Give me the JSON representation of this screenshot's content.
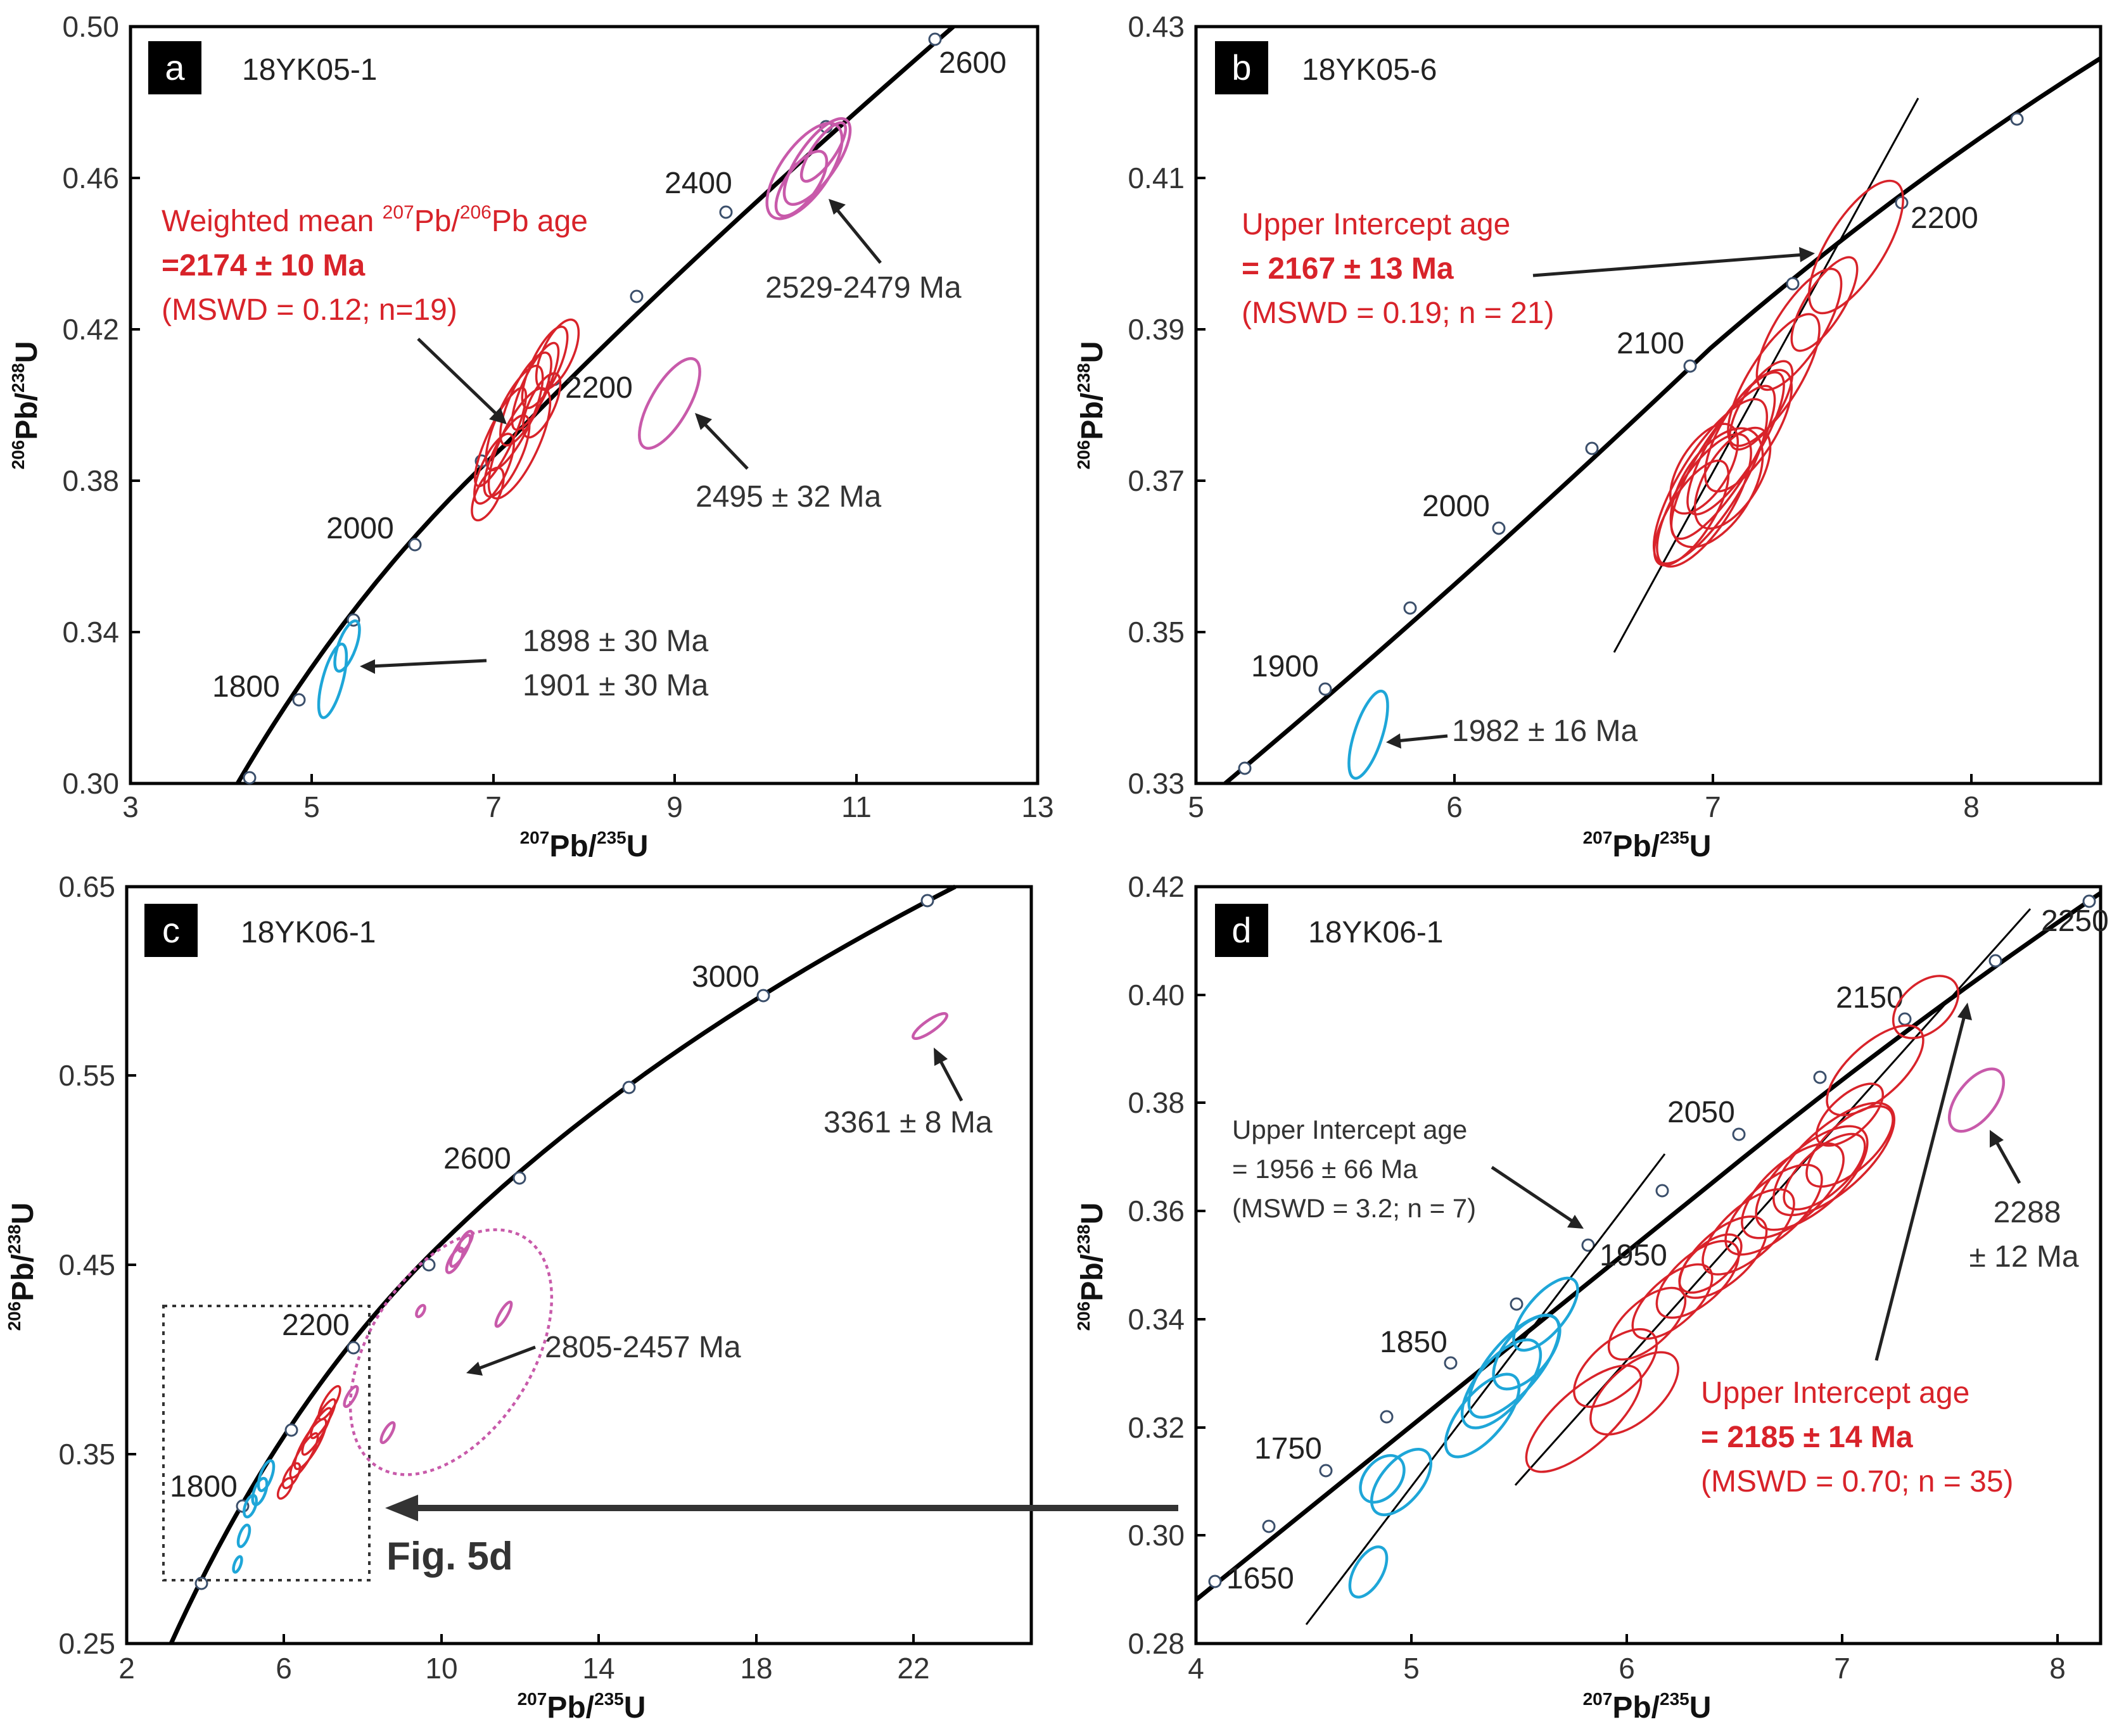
{
  "chart_data": [
    {
      "type": "scatter",
      "panel": "a",
      "sample": "18YK05-1",
      "xlabel": "207Pb/235U",
      "ylabel": "206Pb/238U",
      "xlim": [
        3,
        13
      ],
      "ylim": [
        0.3,
        0.5
      ],
      "xticks": [
        "3",
        "5",
        "7",
        "9",
        "11",
        "13"
      ],
      "yticks": [
        "0.30",
        "0.34",
        "0.38",
        "0.42",
        "0.46",
        "0.50"
      ],
      "concordia_labels": [
        "1800",
        "2000",
        "2200",
        "2400",
        "2600"
      ],
      "annotations": {
        "red_line1": "Weighted mean ",
        "red_line1_sup": "207",
        "red_line1_mid": "Pb/",
        "red_line1_sup2": "206",
        "red_line1_end": "Pb age",
        "red_line2": "=2174 ± 10  Ma",
        "red_line3": "(MSWD = 0.12; n=19)",
        "mag_upper": "2529-2479 Ma",
        "mag_lower": "2495 ± 32 Ma",
        "cyan_line1": "1898 ± 30 Ma",
        "cyan_line2": "1901 ± 30 Ma"
      },
      "series": [
        {
          "name": "red",
          "values": [
            [
              7.2,
              0.385
            ],
            [
              7.4,
              0.392
            ],
            [
              7.5,
              0.398
            ],
            [
              7.6,
              0.404
            ],
            [
              7.3,
              0.388
            ],
            [
              7.45,
              0.395
            ],
            [
              7.7,
              0.41
            ]
          ]
        },
        {
          "name": "magenta",
          "values": [
            [
              10.6,
              0.463
            ],
            [
              10.7,
              0.466
            ],
            [
              9.2,
              0.403
            ]
          ]
        },
        {
          "name": "cyan",
          "values": [
            [
              5.2,
              0.328
            ],
            [
              5.4,
              0.336
            ]
          ]
        }
      ]
    },
    {
      "type": "scatter",
      "panel": "b",
      "sample": "18YK05-6",
      "xlabel": "207Pb/235U",
      "ylabel": "206Pb/238U",
      "xlim": [
        5,
        8.5
      ],
      "ylim": [
        0.33,
        0.43
      ],
      "xticks": [
        "5",
        "6",
        "7",
        "8"
      ],
      "yticks": [
        "0.33",
        "0.35",
        "0.37",
        "0.39",
        "0.41",
        "0.43"
      ],
      "concordia_labels": [
        "1900",
        "2000",
        "2100",
        "2200"
      ],
      "annotations": {
        "red_line1": "Upper Intercept age",
        "red_line2": "= 2167 ± 13 Ma",
        "red_line3": "(MSWD = 0.19; n = 21)",
        "cyan_label": "1982 ± 16 Ma"
      },
      "series": [
        {
          "name": "red",
          "values": [
            [
              6.95,
              0.37
            ],
            [
              7.05,
              0.374
            ],
            [
              7.2,
              0.381
            ],
            [
              7.3,
              0.389
            ],
            [
              7.5,
              0.403
            ],
            [
              6.9,
              0.366
            ]
          ]
        },
        {
          "name": "cyan",
          "values": [
            [
              5.65,
              0.337
            ]
          ]
        }
      ]
    },
    {
      "type": "scatter",
      "panel": "c",
      "sample": "18YK06-1",
      "xlabel": "207Pb/235U",
      "ylabel": "206Pb/238U",
      "xlim": [
        2,
        25
      ],
      "ylim": [
        0.25,
        0.65
      ],
      "xticks": [
        "2",
        "6",
        "10",
        "14",
        "18",
        "22"
      ],
      "yticks": [
        "0.25",
        "0.35",
        "0.45",
        "0.55",
        "0.65"
      ],
      "concordia_labels": [
        "1800",
        "2200",
        "2600",
        "3000"
      ],
      "annotations": {
        "mag_upper": "3361 ± 8 Ma",
        "mag_mid": "2805-2457 Ma",
        "figref": "Fig. 5d"
      },
      "series": [
        {
          "name": "red",
          "values": [
            [
              6.8,
              0.37
            ],
            [
              7.0,
              0.375
            ],
            [
              6.5,
              0.36
            ]
          ]
        },
        {
          "name": "cyan",
          "values": [
            [
              5.5,
              0.34
            ],
            [
              5.0,
              0.31
            ],
            [
              4.9,
              0.29
            ]
          ]
        },
        {
          "name": "magenta",
          "values": [
            [
              22.5,
              0.573
            ],
            [
              10.5,
              0.46
            ],
            [
              11.5,
              0.425
            ],
            [
              8.5,
              0.36
            ]
          ]
        }
      ]
    },
    {
      "type": "scatter",
      "panel": "d",
      "sample": "18YK06-1",
      "xlabel": "207Pb/235U",
      "ylabel": "206Pb/238U",
      "xlim": [
        4,
        8.2
      ],
      "ylim": [
        0.28,
        0.42
      ],
      "xticks": [
        "4",
        "5",
        "6",
        "7",
        "8"
      ],
      "yticks": [
        "0.28",
        "0.30",
        "0.32",
        "0.34",
        "0.36",
        "0.38",
        "0.40",
        "0.42"
      ],
      "concordia_labels": [
        "1650",
        "1750",
        "1850",
        "1950",
        "2050",
        "2150",
        "2250"
      ],
      "annotations": {
        "black_line1": "Upper Intercept age",
        "black_line2": "= 1956 ± 66 Ma",
        "black_line3": "(MSWD = 3.2; n = 7)",
        "red_line1": "Upper Intercept age",
        "red_line2": "= 2185 ± 14 Ma",
        "red_line3": "(MSWD = 0.70; n = 35)",
        "mag_line1": "2288",
        "mag_line2": "± 12 Ma"
      },
      "series": [
        {
          "name": "red",
          "values": [
            [
              6.8,
              0.368
            ],
            [
              6.6,
              0.362
            ],
            [
              6.3,
              0.352
            ],
            [
              6.0,
              0.343
            ],
            [
              5.9,
              0.335
            ],
            [
              7.3,
              0.393
            ]
          ]
        },
        {
          "name": "cyan",
          "values": [
            [
              5.5,
              0.337
            ],
            [
              5.4,
              0.33
            ],
            [
              5.0,
              0.308
            ],
            [
              4.8,
              0.292
            ]
          ]
        },
        {
          "name": "magenta",
          "values": [
            [
              7.6,
              0.382
            ]
          ]
        }
      ]
    }
  ]
}
